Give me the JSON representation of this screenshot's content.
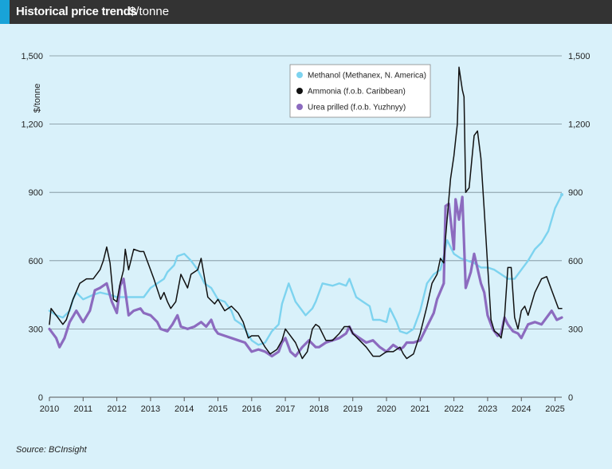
{
  "header": {
    "title": "Historical price trends",
    "subtitle": "$/tonne"
  },
  "source": "Source: BCInsight",
  "colors": {
    "header_bg": "#333333",
    "accent": "#19a3d8",
    "background": "#d9f1fa",
    "methanol": "#7dd3ef",
    "ammonia": "#111111",
    "urea": "#8c6bbf"
  },
  "chart_data": {
    "type": "line",
    "title": "Historical price trends",
    "ylabel": "$/tonne",
    "xlabel": "",
    "xlim": [
      2010.0,
      2025.2
    ],
    "ylim": [
      0,
      1500
    ],
    "yticks": [
      0,
      300,
      600,
      900,
      1200,
      1500
    ],
    "ytick_labels": [
      "0",
      "300",
      "600",
      "900",
      "1,200",
      "1,500"
    ],
    "xticks": [
      2010,
      2011,
      2012,
      2013,
      2014,
      2015,
      2016,
      2017,
      2018,
      2019,
      2020,
      2021,
      2022,
      2023,
      2024,
      2025
    ],
    "xtick_labels": [
      "2010",
      "2011",
      "2012",
      "2013",
      "2014",
      "2015",
      "2016",
      "2017",
      "2018",
      "2019",
      "2020",
      "2021",
      "2022",
      "2023",
      "2024",
      "2025"
    ],
    "grid": "horizontal",
    "dual_y_axis": true,
    "legend_position": "top-center",
    "series": [
      {
        "name": "Methanol (Methanex, N. America)",
        "color": "#7dd3ef",
        "width": 2.4,
        "marker": "dot",
        "points": [
          [
            2010.0,
            380
          ],
          [
            2010.2,
            360
          ],
          [
            2010.4,
            350
          ],
          [
            2010.6,
            380
          ],
          [
            2010.7,
            430
          ],
          [
            2010.8,
            460
          ],
          [
            2011.0,
            430
          ],
          [
            2011.3,
            450
          ],
          [
            2011.5,
            460
          ],
          [
            2011.8,
            450
          ],
          [
            2012.0,
            440
          ],
          [
            2012.2,
            440
          ],
          [
            2012.4,
            440
          ],
          [
            2012.6,
            440
          ],
          [
            2012.8,
            440
          ],
          [
            2013.0,
            480
          ],
          [
            2013.2,
            500
          ],
          [
            2013.4,
            520
          ],
          [
            2013.5,
            550
          ],
          [
            2013.7,
            580
          ],
          [
            2013.8,
            620
          ],
          [
            2014.0,
            630
          ],
          [
            2014.2,
            600
          ],
          [
            2014.4,
            560
          ],
          [
            2014.6,
            500
          ],
          [
            2014.8,
            480
          ],
          [
            2015.0,
            430
          ],
          [
            2015.2,
            420
          ],
          [
            2015.4,
            380
          ],
          [
            2015.5,
            340
          ],
          [
            2015.7,
            320
          ],
          [
            2015.8,
            300
          ],
          [
            2016.0,
            250
          ],
          [
            2016.2,
            230
          ],
          [
            2016.4,
            240
          ],
          [
            2016.6,
            290
          ],
          [
            2016.8,
            320
          ],
          [
            2016.9,
            410
          ],
          [
            2017.1,
            500
          ],
          [
            2017.3,
            420
          ],
          [
            2017.5,
            380
          ],
          [
            2017.6,
            360
          ],
          [
            2017.8,
            390
          ],
          [
            2017.9,
            420
          ],
          [
            2018.1,
            500
          ],
          [
            2018.4,
            490
          ],
          [
            2018.6,
            500
          ],
          [
            2018.8,
            490
          ],
          [
            2018.9,
            520
          ],
          [
            2019.1,
            440
          ],
          [
            2019.3,
            420
          ],
          [
            2019.5,
            400
          ],
          [
            2019.6,
            340
          ],
          [
            2019.8,
            340
          ],
          [
            2020.0,
            330
          ],
          [
            2020.1,
            390
          ],
          [
            2020.3,
            330
          ],
          [
            2020.4,
            290
          ],
          [
            2020.6,
            280
          ],
          [
            2020.8,
            300
          ],
          [
            2020.9,
            340
          ],
          [
            2021.0,
            380
          ],
          [
            2021.2,
            500
          ],
          [
            2021.4,
            540
          ],
          [
            2021.6,
            560
          ],
          [
            2021.7,
            620
          ],
          [
            2021.8,
            690
          ],
          [
            2022.0,
            630
          ],
          [
            2022.2,
            610
          ],
          [
            2022.4,
            600
          ],
          [
            2022.6,
            590
          ],
          [
            2022.8,
            570
          ],
          [
            2023.0,
            570
          ],
          [
            2023.2,
            560
          ],
          [
            2023.4,
            540
          ],
          [
            2023.6,
            520
          ],
          [
            2023.8,
            520
          ],
          [
            2024.0,
            560
          ],
          [
            2024.2,
            600
          ],
          [
            2024.4,
            650
          ],
          [
            2024.6,
            680
          ],
          [
            2024.8,
            730
          ],
          [
            2025.0,
            830
          ],
          [
            2025.2,
            890
          ]
        ]
      },
      {
        "name": "Ammonia (f.o.b. Caribbean)",
        "color": "#111111",
        "width": 1.5,
        "marker": "dot",
        "points": [
          [
            2010.0,
            320
          ],
          [
            2010.05,
            390
          ],
          [
            2010.2,
            360
          ],
          [
            2010.4,
            320
          ],
          [
            2010.5,
            340
          ],
          [
            2010.7,
            430
          ],
          [
            2010.9,
            500
          ],
          [
            2011.1,
            520
          ],
          [
            2011.3,
            520
          ],
          [
            2011.5,
            560
          ],
          [
            2011.6,
            600
          ],
          [
            2011.7,
            660
          ],
          [
            2011.8,
            590
          ],
          [
            2011.9,
            430
          ],
          [
            2012.0,
            420
          ],
          [
            2012.1,
            500
          ],
          [
            2012.2,
            560
          ],
          [
            2012.25,
            650
          ],
          [
            2012.35,
            560
          ],
          [
            2012.5,
            650
          ],
          [
            2012.7,
            640
          ],
          [
            2012.8,
            640
          ],
          [
            2013.0,
            560
          ],
          [
            2013.1,
            520
          ],
          [
            2013.3,
            430
          ],
          [
            2013.4,
            460
          ],
          [
            2013.5,
            420
          ],
          [
            2013.6,
            390
          ],
          [
            2013.75,
            420
          ],
          [
            2013.9,
            540
          ],
          [
            2014.1,
            480
          ],
          [
            2014.2,
            540
          ],
          [
            2014.4,
            560
          ],
          [
            2014.5,
            610
          ],
          [
            2014.7,
            440
          ],
          [
            2014.9,
            410
          ],
          [
            2015.0,
            430
          ],
          [
            2015.2,
            380
          ],
          [
            2015.4,
            400
          ],
          [
            2015.6,
            370
          ],
          [
            2015.75,
            330
          ],
          [
            2015.9,
            260
          ],
          [
            2016.0,
            270
          ],
          [
            2016.2,
            270
          ],
          [
            2016.4,
            220
          ],
          [
            2016.55,
            190
          ],
          [
            2016.75,
            210
          ],
          [
            2016.9,
            250
          ],
          [
            2017.0,
            300
          ],
          [
            2017.1,
            280
          ],
          [
            2017.3,
            240
          ],
          [
            2017.5,
            170
          ],
          [
            2017.65,
            200
          ],
          [
            2017.8,
            300
          ],
          [
            2017.9,
            320
          ],
          [
            2018.0,
            310
          ],
          [
            2018.2,
            250
          ],
          [
            2018.4,
            250
          ],
          [
            2018.6,
            280
          ],
          [
            2018.75,
            310
          ],
          [
            2018.9,
            310
          ],
          [
            2019.0,
            280
          ],
          [
            2019.2,
            250
          ],
          [
            2019.4,
            220
          ],
          [
            2019.6,
            180
          ],
          [
            2019.8,
            180
          ],
          [
            2020.0,
            200
          ],
          [
            2020.2,
            200
          ],
          [
            2020.4,
            220
          ],
          [
            2020.5,
            190
          ],
          [
            2020.6,
            170
          ],
          [
            2020.8,
            190
          ],
          [
            2021.0,
            280
          ],
          [
            2021.2,
            400
          ],
          [
            2021.35,
            500
          ],
          [
            2021.5,
            540
          ],
          [
            2021.6,
            610
          ],
          [
            2021.7,
            590
          ],
          [
            2021.75,
            700
          ],
          [
            2021.9,
            960
          ],
          [
            2022.0,
            1060
          ],
          [
            2022.1,
            1200
          ],
          [
            2022.15,
            1450
          ],
          [
            2022.25,
            1350
          ],
          [
            2022.3,
            1320
          ],
          [
            2022.35,
            900
          ],
          [
            2022.45,
            920
          ],
          [
            2022.6,
            1150
          ],
          [
            2022.7,
            1170
          ],
          [
            2022.8,
            1050
          ],
          [
            2022.9,
            820
          ],
          [
            2023.0,
            580
          ],
          [
            2023.1,
            340
          ],
          [
            2023.2,
            290
          ],
          [
            2023.3,
            280
          ],
          [
            2023.4,
            260
          ],
          [
            2023.5,
            350
          ],
          [
            2023.6,
            570
          ],
          [
            2023.7,
            570
          ],
          [
            2023.8,
            350
          ],
          [
            2023.9,
            300
          ],
          [
            2024.0,
            380
          ],
          [
            2024.1,
            400
          ],
          [
            2024.2,
            360
          ],
          [
            2024.4,
            460
          ],
          [
            2024.6,
            520
          ],
          [
            2024.75,
            530
          ],
          [
            2024.9,
            470
          ],
          [
            2025.1,
            390
          ],
          [
            2025.2,
            390
          ]
        ]
      },
      {
        "name": "Urea prilled (f.o.b. Yuzhnyy)",
        "color": "#8c6bbf",
        "width": 3.2,
        "marker": "dot",
        "points": [
          [
            2010.0,
            300
          ],
          [
            2010.2,
            260
          ],
          [
            2010.3,
            220
          ],
          [
            2010.45,
            260
          ],
          [
            2010.6,
            330
          ],
          [
            2010.8,
            380
          ],
          [
            2011.0,
            330
          ],
          [
            2011.2,
            380
          ],
          [
            2011.35,
            470
          ],
          [
            2011.5,
            480
          ],
          [
            2011.7,
            500
          ],
          [
            2011.85,
            420
          ],
          [
            2012.0,
            370
          ],
          [
            2012.1,
            490
          ],
          [
            2012.2,
            520
          ],
          [
            2012.35,
            360
          ],
          [
            2012.5,
            380
          ],
          [
            2012.7,
            390
          ],
          [
            2012.8,
            370
          ],
          [
            2013.0,
            360
          ],
          [
            2013.2,
            330
          ],
          [
            2013.3,
            300
          ],
          [
            2013.5,
            290
          ],
          [
            2013.65,
            320
          ],
          [
            2013.8,
            360
          ],
          [
            2013.9,
            310
          ],
          [
            2014.1,
            300
          ],
          [
            2014.3,
            310
          ],
          [
            2014.5,
            330
          ],
          [
            2014.65,
            310
          ],
          [
            2014.8,
            340
          ],
          [
            2014.9,
            300
          ],
          [
            2015.0,
            280
          ],
          [
            2015.2,
            270
          ],
          [
            2015.4,
            260
          ],
          [
            2015.6,
            250
          ],
          [
            2015.8,
            240
          ],
          [
            2016.0,
            200
          ],
          [
            2016.2,
            210
          ],
          [
            2016.4,
            200
          ],
          [
            2016.6,
            180
          ],
          [
            2016.8,
            200
          ],
          [
            2016.9,
            240
          ],
          [
            2017.0,
            260
          ],
          [
            2017.15,
            200
          ],
          [
            2017.3,
            180
          ],
          [
            2017.5,
            220
          ],
          [
            2017.7,
            250
          ],
          [
            2017.9,
            220
          ],
          [
            2018.0,
            220
          ],
          [
            2018.2,
            240
          ],
          [
            2018.4,
            250
          ],
          [
            2018.6,
            260
          ],
          [
            2018.8,
            280
          ],
          [
            2018.9,
            310
          ],
          [
            2019.0,
            280
          ],
          [
            2019.2,
            260
          ],
          [
            2019.4,
            240
          ],
          [
            2019.6,
            250
          ],
          [
            2019.8,
            220
          ],
          [
            2020.0,
            200
          ],
          [
            2020.2,
            230
          ],
          [
            2020.4,
            210
          ],
          [
            2020.5,
            220
          ],
          [
            2020.6,
            240
          ],
          [
            2020.8,
            240
          ],
          [
            2021.0,
            250
          ],
          [
            2021.2,
            310
          ],
          [
            2021.4,
            370
          ],
          [
            2021.5,
            430
          ],
          [
            2021.7,
            500
          ],
          [
            2021.75,
            840
          ],
          [
            2021.85,
            850
          ],
          [
            2022.0,
            650
          ],
          [
            2022.05,
            870
          ],
          [
            2022.15,
            780
          ],
          [
            2022.25,
            880
          ],
          [
            2022.35,
            480
          ],
          [
            2022.5,
            550
          ],
          [
            2022.6,
            630
          ],
          [
            2022.8,
            500
          ],
          [
            2022.9,
            460
          ],
          [
            2023.0,
            360
          ],
          [
            2023.15,
            300
          ],
          [
            2023.3,
            270
          ],
          [
            2023.4,
            280
          ],
          [
            2023.5,
            350
          ],
          [
            2023.6,
            320
          ],
          [
            2023.75,
            290
          ],
          [
            2023.9,
            280
          ],
          [
            2024.0,
            260
          ],
          [
            2024.2,
            320
          ],
          [
            2024.4,
            330
          ],
          [
            2024.6,
            320
          ],
          [
            2024.75,
            350
          ],
          [
            2024.9,
            380
          ],
          [
            2025.05,
            340
          ],
          [
            2025.2,
            350
          ]
        ]
      }
    ]
  }
}
